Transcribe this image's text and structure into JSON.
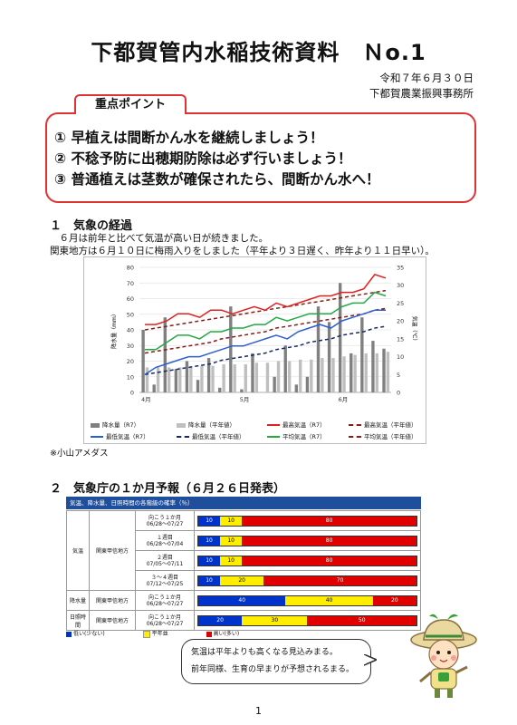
{
  "header": {
    "title": "下都賀管内水稲技術資料　Ｎo.1",
    "date": "令和７年６月３０日",
    "office": "下都賀農業振興事務所"
  },
  "key_points": {
    "label": "重点ポイント",
    "items": [
      "① 早植えは間断かん水を継続しましょう！",
      "② 不稔予防に出穂期防除は必ず行いましょう！",
      "③ 普通植えは茎数が確保されたら、間断かん水へ！"
    ]
  },
  "section1": {
    "heading": "１　気象の経過",
    "line1": "　６月は前年と比べて気温が高い日が続きました。",
    "line2": "関東地方は６月１０日に梅雨入りをしました（平年より３日遅く、昨年より１１日早い）。",
    "note": "※小山アメダス"
  },
  "chart_data": {
    "type": "bar",
    "y_left_label": "降水量（mm）",
    "y_right_label": "気温（℃）",
    "y_left_ticks": [
      "0",
      "10",
      "20",
      "30",
      "40",
      "50",
      "60",
      "70",
      "80"
    ],
    "y_right_ticks": [
      "0",
      "5",
      "10",
      "15",
      "20",
      "25",
      "30",
      "35"
    ],
    "ylim_left": [
      0,
      80
    ],
    "ylim_right": [
      0,
      35
    ],
    "x_labels": [
      "4月",
      "5月",
      "6月"
    ],
    "x_label_at": [
      0,
      9,
      18
    ],
    "precip_r7": [
      40,
      5,
      48,
      15,
      20,
      8,
      22,
      3,
      55,
      2,
      25,
      0,
      10,
      30,
      5,
      10,
      55,
      45,
      70,
      25,
      48,
      33,
      28
    ],
    "precip_normal": [
      16,
      16,
      16,
      16,
      16,
      17,
      17,
      18,
      18,
      18,
      19,
      19,
      20,
      20,
      21,
      21,
      22,
      22,
      23,
      24,
      25,
      25,
      26
    ],
    "max_r7": [
      19,
      19,
      20,
      22,
      22,
      21,
      23,
      23,
      22,
      23,
      24,
      23,
      25,
      24,
      25,
      26,
      27,
      27,
      28,
      28,
      29,
      33,
      32
    ],
    "max_normal": [
      17.5,
      18,
      18.5,
      19,
      19.5,
      20,
      20.5,
      21,
      21.5,
      22,
      22.5,
      23,
      23.5,
      24,
      24.5,
      25,
      25.5,
      26,
      26.5,
      27,
      27.5,
      28,
      28.5
    ],
    "min_r7": [
      5,
      7,
      8,
      9,
      10,
      10,
      11,
      12,
      13,
      13,
      14,
      15,
      16,
      15,
      17,
      18,
      19,
      18,
      20,
      21,
      22,
      23,
      23
    ],
    "min_normal": [
      5,
      5.5,
      6,
      6.5,
      7,
      7.5,
      8,
      9,
      9.5,
      10,
      10.5,
      11,
      12,
      12.5,
      13,
      14,
      14.5,
      15,
      16,
      16.5,
      17,
      18,
      18.5
    ],
    "mean_r7": [
      12,
      12,
      14,
      16,
      16,
      15,
      17,
      17,
      18,
      18,
      19,
      19,
      21,
      20,
      21,
      22,
      22,
      22,
      24,
      25,
      25,
      28,
      27
    ],
    "mean_normal": [
      11,
      11.5,
      12,
      12.5,
      13,
      13.5,
      14,
      15,
      15.5,
      16,
      16.5,
      17,
      18,
      18.5,
      19,
      19.5,
      20,
      20.5,
      21,
      21.5,
      22,
      23,
      23.5
    ],
    "legend": [
      "降水量（R7）",
      "降水量（平年値）",
      "最高気温（R7）",
      "最高気温（平年値）",
      "最低気温（R7）",
      "最低気温（平年値）",
      "平均気温（R7）",
      "平均気温（平年値）"
    ],
    "colors": {
      "precip_r7": "#808080",
      "precip_normal": "#bfbfbf",
      "max": "#e02020",
      "min": "#2e5fd1",
      "mean": "#22aa44",
      "min_normal": "#1a2a66",
      "mean_normal": "#8b1a1a"
    }
  },
  "section2": {
    "heading": "２　気象庁の１か月予報（６月２６日発表）",
    "table_title": "気温、降水量、日照時間の各階級の確率（％）",
    "rows": [
      {
        "element": "気温",
        "region": "関東甲信地方",
        "period": "向こう１か月",
        "dates": "06/28〜07/27",
        "low": "10",
        "normal": "10",
        "high": "80",
        "low_pct": 10,
        "normal_pct": 10,
        "high_pct": 80
      },
      {
        "element": "",
        "region": "",
        "period": "１週目",
        "dates": "06/28〜07/04",
        "low": "10",
        "normal": "10",
        "high": "80",
        "low_pct": 10,
        "normal_pct": 10,
        "high_pct": 80
      },
      {
        "element": "",
        "region": "",
        "period": "２週目",
        "dates": "07/05〜07/11",
        "low": "10",
        "normal": "10",
        "high": "80",
        "low_pct": 10,
        "normal_pct": 10,
        "high_pct": 80
      },
      {
        "element": "",
        "region": "",
        "period": "３〜４週目",
        "dates": "07/12〜07/25",
        "low": "10",
        "normal": "20",
        "high": "70",
        "low_pct": 10,
        "normal_pct": 20,
        "high_pct": 70
      },
      {
        "element": "降水量",
        "region": "関東甲信地方",
        "period": "向こう１か月",
        "dates": "06/28〜07/27",
        "low": "40",
        "normal": "40",
        "high": "20",
        "low_pct": 40,
        "normal_pct": 40,
        "high_pct": 20
      },
      {
        "element": "日照時間",
        "region": "関東甲信地方",
        "period": "向こう１か月",
        "dates": "06/28〜07/27",
        "low": "20",
        "normal": "30",
        "high": "50",
        "low_pct": 20,
        "normal_pct": 30,
        "high_pct": 50
      }
    ],
    "legend": [
      "低い(少ない)",
      "平年並",
      "高い(多い)"
    ],
    "speech_line1": "気温は平年よりも高くなる見込みまる。",
    "speech_line2": "前年同様、生育の早まりが予想されるまる。"
  },
  "page_number": "1"
}
